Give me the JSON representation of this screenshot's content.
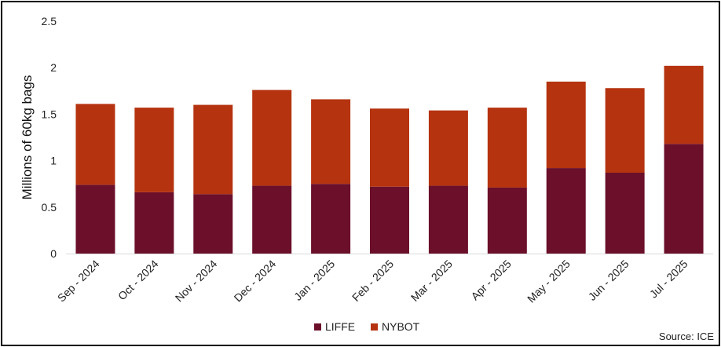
{
  "chart_data": {
    "type": "bar",
    "stacked": true,
    "title": "",
    "xlabel": "",
    "ylabel": "Millions of 60kg bags",
    "categories": [
      "Sep - 2024",
      "Oct - 2024",
      "Nov - 2024",
      "Dec - 2024",
      "Jan - 2025",
      "Feb - 2025",
      "Mar - 2025",
      "Apr - 2025",
      "May - 2025",
      "Jun - 2025",
      "Jul - 2025"
    ],
    "series": [
      {
        "name": "LIFFE",
        "color": "#6b0f2a",
        "values": [
          0.74,
          0.66,
          0.64,
          0.73,
          0.75,
          0.72,
          0.73,
          0.71,
          0.92,
          0.87,
          1.18
        ]
      },
      {
        "name": "NYBOT",
        "color": "#b5330f",
        "values": [
          0.87,
          0.91,
          0.96,
          1.03,
          0.91,
          0.84,
          0.81,
          0.86,
          0.93,
          0.91,
          0.84
        ]
      }
    ],
    "ylim": [
      0,
      2.5
    ],
    "yticks": [
      "0",
      "0.5",
      "1",
      "1.5",
      "2",
      "2.5"
    ],
    "ytick_values": [
      0,
      0.5,
      1,
      1.5,
      2,
      2.5
    ],
    "grid": false,
    "legend_position": "bottom-center",
    "source": "Source: ICE"
  }
}
